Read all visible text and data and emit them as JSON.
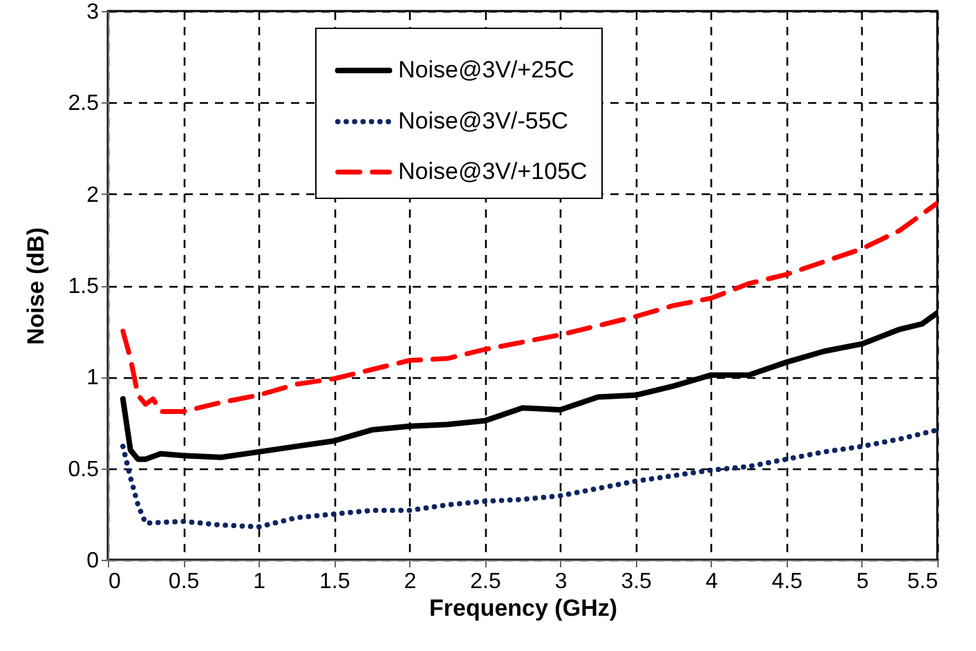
{
  "chart_data": {
    "type": "line",
    "xlabel": "Frequency (GHz)",
    "ylabel": "Noise (dB)",
    "xlim": [
      0,
      5.5
    ],
    "ylim": [
      0,
      3
    ],
    "xticks": [
      0,
      0.5,
      1,
      1.5,
      2,
      2.5,
      3,
      3.5,
      4,
      4.5,
      5,
      5.5
    ],
    "yticks": [
      0,
      0.5,
      1,
      1.5,
      2,
      2.5,
      3
    ],
    "grid": true,
    "legend": "top",
    "marker": "none",
    "series": [
      {
        "name": "Noise@3V/+25C",
        "color": "#000000",
        "line_style": "solid",
        "x": [
          0.1,
          0.15,
          0.2,
          0.25,
          0.35,
          0.5,
          0.75,
          1,
          1.25,
          1.5,
          1.75,
          2,
          2.25,
          2.5,
          2.75,
          3,
          3.25,
          3.5,
          3.75,
          4,
          4.25,
          4.5,
          4.75,
          5,
          5.25,
          5.4,
          5.5
        ],
        "values": [
          0.88,
          0.6,
          0.55,
          0.55,
          0.58,
          0.57,
          0.56,
          0.59,
          0.62,
          0.65,
          0.71,
          0.73,
          0.74,
          0.76,
          0.83,
          0.82,
          0.89,
          0.9,
          0.95,
          1.01,
          1.01,
          1.08,
          1.14,
          1.18,
          1.26,
          1.29,
          1.35
        ]
      },
      {
        "name": "Noise@3V/-55C",
        "color": "#0b2461",
        "line_style": "dotted",
        "x": [
          0.1,
          0.15,
          0.2,
          0.25,
          0.5,
          0.75,
          1,
          1.25,
          1.5,
          1.75,
          2,
          2.25,
          2.5,
          2.75,
          3,
          3.25,
          3.5,
          3.75,
          4,
          4.25,
          4.5,
          4.75,
          5,
          5.25,
          5.5
        ],
        "values": [
          0.62,
          0.45,
          0.3,
          0.2,
          0.21,
          0.19,
          0.18,
          0.23,
          0.25,
          0.27,
          0.27,
          0.3,
          0.32,
          0.33,
          0.35,
          0.39,
          0.43,
          0.46,
          0.49,
          0.51,
          0.55,
          0.59,
          0.62,
          0.66,
          0.71
        ]
      },
      {
        "name": "Noise@3V/+105C",
        "color": "#ff0000",
        "line_style": "dashed",
        "x": [
          0.1,
          0.15,
          0.2,
          0.25,
          0.3,
          0.35,
          0.5,
          0.75,
          1,
          1.25,
          1.5,
          1.75,
          2,
          2.25,
          2.5,
          2.75,
          3,
          3.25,
          3.5,
          3.75,
          4,
          4.25,
          4.5,
          4.75,
          5,
          5.25,
          5.5
        ],
        "values": [
          1.25,
          1.1,
          0.9,
          0.85,
          0.88,
          0.81,
          0.81,
          0.86,
          0.9,
          0.96,
          0.99,
          1.04,
          1.09,
          1.1,
          1.15,
          1.19,
          1.23,
          1.28,
          1.33,
          1.39,
          1.43,
          1.51,
          1.56,
          1.63,
          1.7,
          1.8,
          1.95
        ]
      }
    ]
  }
}
